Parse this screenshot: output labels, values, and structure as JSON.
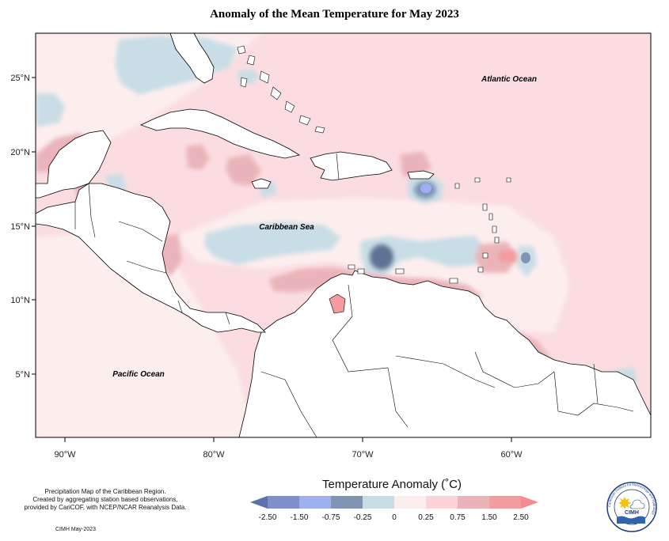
{
  "title": "Anomaly of the Mean Temperature for May 2023",
  "labels": {
    "atlantic": "Atlantic Ocean",
    "caribbean": "Caribbean Sea",
    "pacific": "Pacific Ocean"
  },
  "axes": {
    "x_ticks": [
      "90°W",
      "80°W",
      "70°W",
      "60°W"
    ],
    "y_ticks": [
      "25°N",
      "20°N",
      "15°N",
      "10°N",
      "5°N"
    ]
  },
  "legend": {
    "title": "Temperature Anomaly (˚C)",
    "tick_labels": [
      "-2.50",
      "-1.50",
      "-0.75",
      "-0.25",
      "0",
      "0.25",
      "0.75",
      "1.50",
      "2.50"
    ],
    "colors": [
      "#5f6fa8",
      "#7f8fce",
      "#9fb0f2",
      "#7f95b3",
      "#c9dde6",
      "#fdeeee",
      "#fbd3d8",
      "#eab4ba",
      "#f59a9e",
      "#f58a90"
    ]
  },
  "footer": {
    "note_lines": [
      "Precipitation Map of the Caribbean Region.",
      "Created by aggregating station based observations,",
      "provided by CariCOF, with NCEP/NCAR Reanalysis Data."
    ],
    "credit": "CIMH May-2023"
  },
  "logo": {
    "text": "CIMH",
    "ring_text": "Caribbean Institute for Meteorology and Hydrology"
  },
  "map_data": {
    "extent": {
      "lon": [
        -92,
        -51.5
      ],
      "lat": [
        1.5,
        28
      ]
    },
    "x_ticks_lon": [
      -90,
      -80,
      -70,
      -60
    ],
    "y_ticks_lat": [
      25,
      20,
      15,
      10,
      5
    ],
    "background_anomaly_color": "#fbdde1",
    "cool_region_color": "#c9dde6",
    "warm_region_color": "#eab4ba",
    "strong_warm_color": "#f59a9e",
    "cold_core_color": "#5f7294",
    "land_fill": "#ffffff",
    "coast_color": "#000000"
  }
}
